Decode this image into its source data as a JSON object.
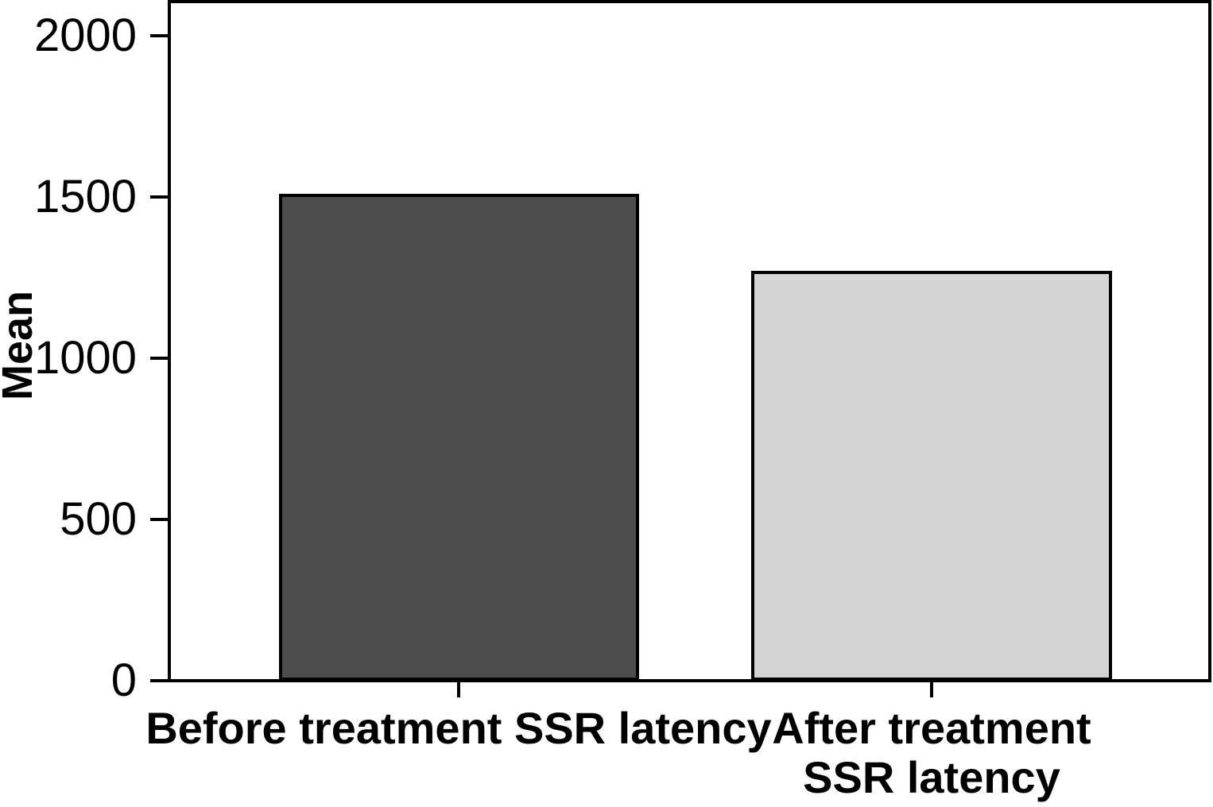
{
  "chart_data": {
    "type": "bar",
    "title": "",
    "categories": [
      "Before treatment SSR latency",
      "After treatment SSR latency"
    ],
    "values": [
      1510,
      1270
    ],
    "bar_colors": [
      "#4d4d4d",
      "#d4d4d4"
    ],
    "bar_border_color": "#000000",
    "xlabel": "",
    "ylabel": "Mean",
    "ylim": [
      0,
      2000
    ],
    "y_ticks": [
      0,
      500,
      1000,
      1500,
      2000
    ],
    "grid": false,
    "legend_position": "none",
    "frame": "full-box",
    "background_color": "#ffffff"
  },
  "labels": {
    "y_axis_title": "Mean",
    "x_label_before": "Before treatment SSR latency",
    "x_label_after_line1": "After treatment",
    "x_label_after_line2": "SSR latency"
  }
}
